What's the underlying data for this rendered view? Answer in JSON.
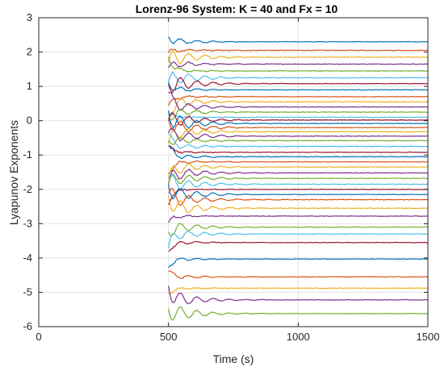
{
  "chart_data": {
    "type": "line",
    "title": "Lorenz-96 System: K = 40 and Fx = 10",
    "xlabel": "Time (s)",
    "ylabel": "Lyapunov Exponents",
    "xlim": [
      0,
      1500
    ],
    "ylim": [
      -6,
      3
    ],
    "x_ticks": [
      0,
      500,
      1000,
      1500
    ],
    "y_ticks": [
      3,
      2,
      1,
      0,
      -1,
      -2,
      -3,
      -4,
      -5,
      -6
    ],
    "x_tick_labels": [
      "0",
      "500",
      "1000",
      "1500"
    ],
    "y_tick_labels": [
      "3",
      "2",
      "1",
      "0",
      "-1",
      "-2",
      "-3",
      "-4",
      "-5",
      "-6"
    ],
    "grid": true,
    "x_start": 500,
    "x_end": 1500,
    "series_colors": [
      "#0072BD",
      "#D95319",
      "#EDB120",
      "#7E2F8E",
      "#77AC30",
      "#4DBEEE",
      "#A2142F"
    ],
    "final_values": [
      2.3,
      2.05,
      1.85,
      1.65,
      1.45,
      1.25,
      1.08,
      0.9,
      0.7,
      0.55,
      0.4,
      0.25,
      0.1,
      0.02,
      -0.08,
      -0.2,
      -0.32,
      -0.45,
      -0.58,
      -0.75,
      -0.92,
      -1.05,
      -1.2,
      -1.35,
      -1.52,
      -1.68,
      -1.85,
      -2.0,
      -2.15,
      -2.3,
      -2.55,
      -2.78,
      -3.1,
      -3.3,
      -3.55,
      -4.03,
      -4.55,
      -4.88,
      -5.22,
      -5.62
    ]
  }
}
